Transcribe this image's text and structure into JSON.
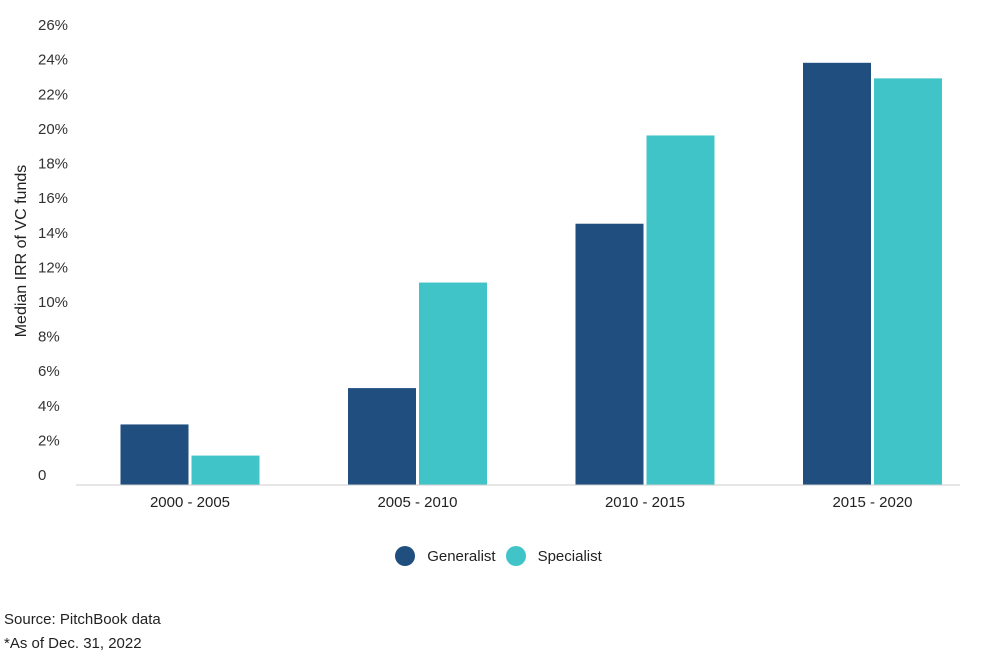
{
  "chart_data": {
    "type": "bar",
    "categories": [
      "2000 - 2005",
      "2005 - 2010",
      "2010 - 2015",
      "2015 - 2020"
    ],
    "series": [
      {
        "name": "Generalist",
        "values": [
          3.5,
          5.6,
          15.1,
          24.4
        ]
      },
      {
        "name": "Specialist",
        "values": [
          1.7,
          11.7,
          20.2,
          23.5
        ]
      }
    ],
    "ylabel": "Median IRR of VC funds",
    "yticks": [
      "0",
      "2%",
      "4%",
      "6%",
      "8%",
      "10%",
      "12%",
      "14%",
      "16%",
      "18%",
      "20%",
      "22%",
      "24%",
      "26%"
    ],
    "ylim": [
      0,
      26.7
    ],
    "legend_position": "bottom",
    "grid": false,
    "colors": {
      "Generalist": "#1f4e7f",
      "Specialist": "#40c4c8"
    }
  },
  "footer": {
    "source": "Source: PitchBook data",
    "note": "*As of Dec. 31, 2022"
  }
}
